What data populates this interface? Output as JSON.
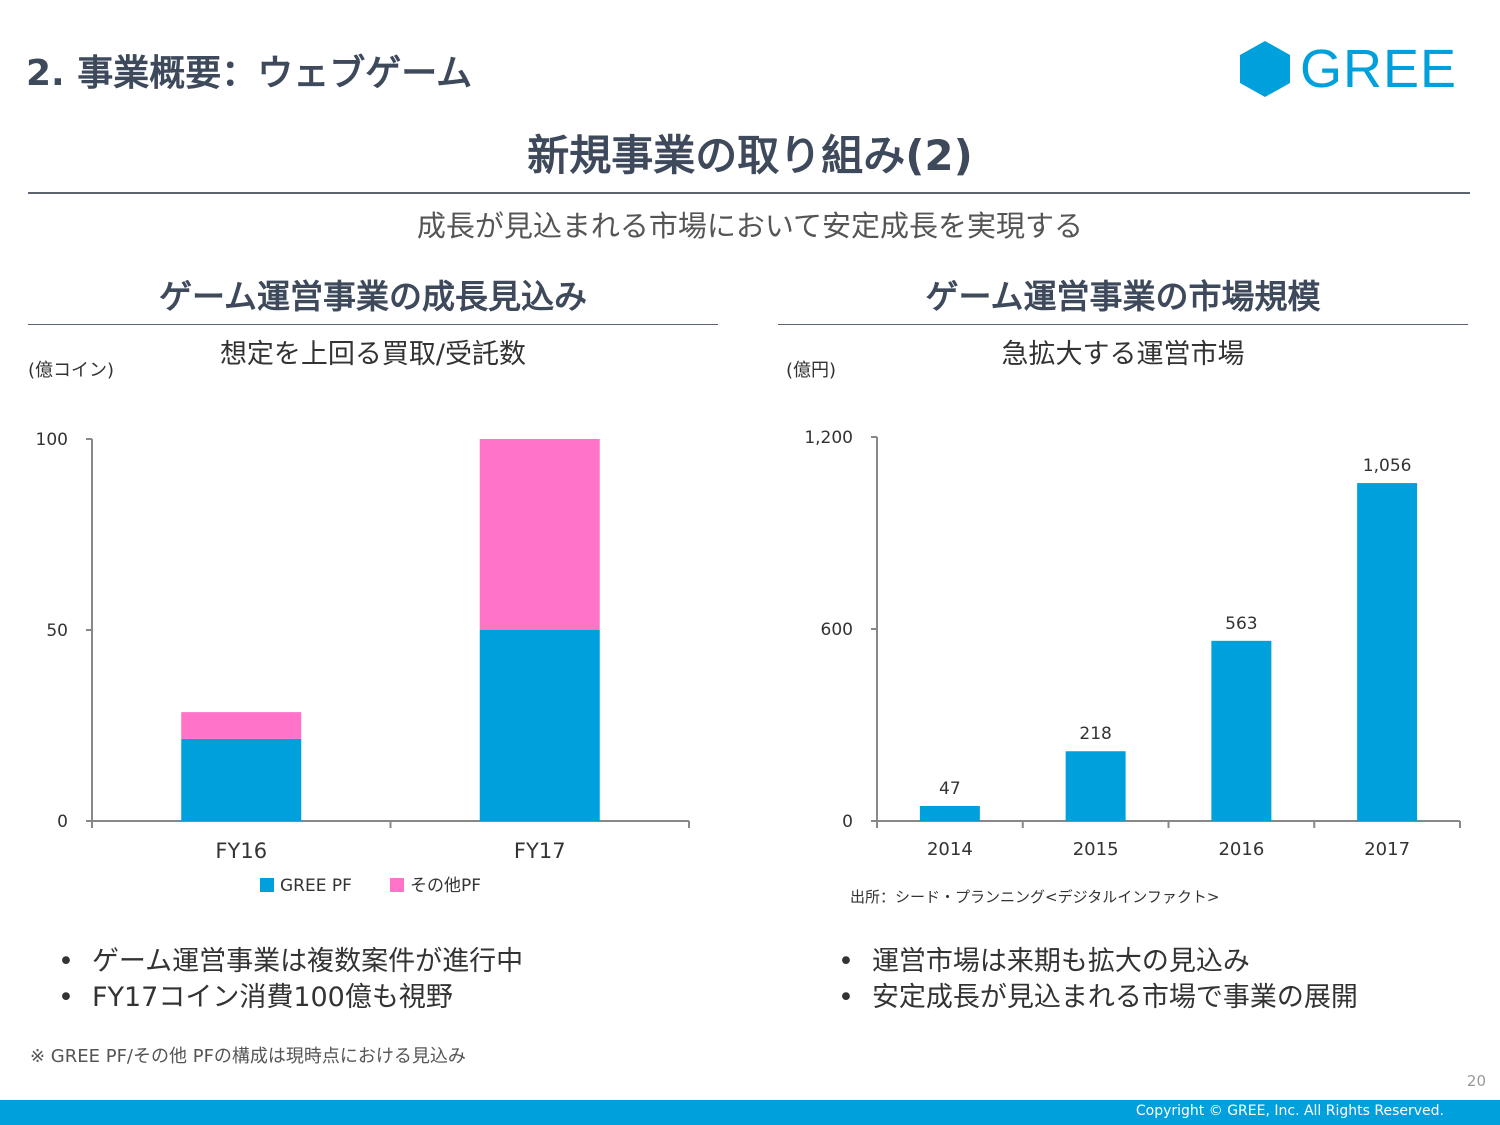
{
  "header": {
    "section": "2. 事業概要：ウェブゲーム",
    "logo_text": "GREE",
    "title": "新規事業の取り組み(2)",
    "subtitle": "成長が見込まれる市場において安定成長を実現する"
  },
  "left": {
    "heading": "ゲーム運営事業の成長見込み",
    "caption": "想定を上回る買取/受託数",
    "bullets": [
      "ゲーム運営事業は複数案件が進行中",
      "FY17コイン消費100億も視野"
    ]
  },
  "right": {
    "heading": "ゲーム運営事業の市場規模",
    "caption": "急拡大する運営市場",
    "source": "出所：シード・プランニング<デジタルインファクト>",
    "bullets": [
      "運営市場は来期も拡大の見込み",
      "安定成長が見込まれる市場で事業の展開"
    ]
  },
  "footer": {
    "note": "※ GREE PF/その他 PFの構成は現時点における見込み",
    "page": "20",
    "copyright": "Copyright © GREE, Inc. All Rights Reserved."
  },
  "colors": {
    "accent": "#00a0dc",
    "pink": "#ff73c8"
  },
  "chart_data": [
    {
      "type": "bar",
      "stacked": true,
      "unit_label": "(億コイン)",
      "categories": [
        "FY16",
        "FY17"
      ],
      "series": [
        {
          "name": "GREE PF",
          "values": [
            21.5,
            50
          ],
          "color": "#00a0dc"
        },
        {
          "name": "その他PF",
          "values": [
            7,
            50
          ],
          "color": "#ff73c8"
        }
      ],
      "ylim": [
        0,
        100
      ],
      "yticks": [
        "0",
        "50",
        "100"
      ],
      "legend": "bottom"
    },
    {
      "type": "bar",
      "unit_label": "(億円)",
      "categories": [
        "2014",
        "2015",
        "2016",
        "2017"
      ],
      "values": [
        47,
        218,
        563,
        1056
      ],
      "data_labels": [
        "47",
        "218",
        "563",
        "1,056"
      ],
      "color": "#00a0dc",
      "ylim": [
        0,
        1200
      ],
      "yticks": [
        "0",
        "600",
        "1,200"
      ]
    }
  ]
}
